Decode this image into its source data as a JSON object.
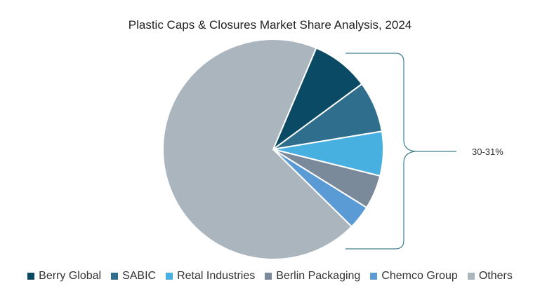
{
  "chart_data": {
    "type": "pie",
    "title": "Plastic Caps & Closures Market Share Analysis, 2024",
    "categories": [
      "Berry Global",
      "SABIC",
      "Retal Industries",
      "Berlin Packaging",
      "Chemco Group",
      "Others"
    ],
    "values": [
      8.5,
      7.5,
      6.5,
      5.0,
      3.5,
      69.0
    ],
    "colors": [
      "#0b4a64",
      "#2f6e8c",
      "#47b0e0",
      "#7a8a9b",
      "#5b9bd5",
      "#aab5bd"
    ],
    "annotation": {
      "label": "30-31%",
      "applies_to": [
        "Berry Global",
        "SABIC",
        "Retal Industries",
        "Berlin Packaging",
        "Chemco Group"
      ]
    },
    "legend_position": "bottom"
  }
}
